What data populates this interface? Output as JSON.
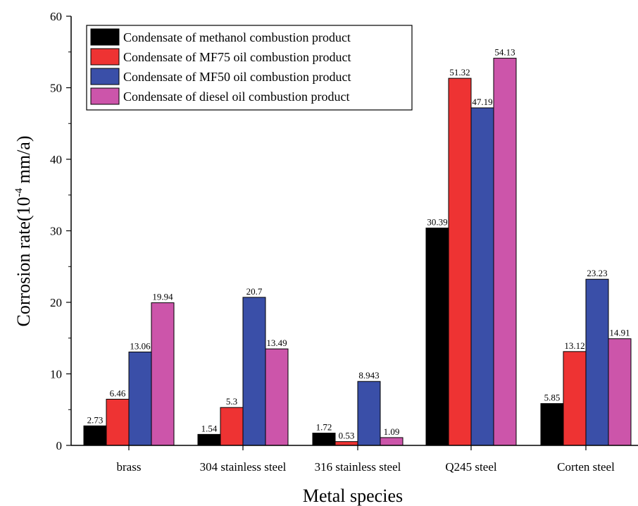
{
  "chart_data": {
    "type": "bar",
    "title": "",
    "xlabel": "Metal species",
    "ylabel_main": "Corrosion rate(10",
    "ylabel_exp": "-4",
    "ylabel_unit": " mm/a)",
    "categories": [
      "brass",
      "304 stainless steel",
      "316 stainless steel",
      "Q245 steel",
      "Corten steel"
    ],
    "ylim": [
      0,
      60
    ],
    "yticks": [
      0,
      10,
      20,
      30,
      40,
      50,
      60
    ],
    "grid": false,
    "legend_position": "top-left",
    "series": [
      {
        "name": "Condensate of methanol combustion product",
        "color": "#000000",
        "values": [
          2.73,
          1.54,
          1.72,
          30.39,
          5.85
        ],
        "labels": [
          "2.73",
          "1.54",
          "1.72",
          "30.39",
          "5.85"
        ]
      },
      {
        "name": "Condensate of MF75 oil combustion product",
        "color": "#ee3333",
        "values": [
          6.46,
          5.3,
          0.53,
          51.32,
          13.12
        ],
        "labels": [
          "6.46",
          "5.3",
          "0.53",
          "51.32",
          "13.12"
        ]
      },
      {
        "name": "Condensate of MF50 oil combustion product",
        "color": "#3a4fa8",
        "values": [
          13.06,
          20.7,
          8.943,
          47.19,
          23.23
        ],
        "labels": [
          "13.06",
          "20.7",
          "8.943",
          "47.19",
          "23.23"
        ]
      },
      {
        "name": "Condensate of diesel oil combustion product",
        "color": "#cc55aa",
        "values": [
          19.94,
          13.49,
          1.09,
          54.13,
          14.91
        ],
        "labels": [
          "19.94",
          "13.49",
          "1.09",
          "54.13",
          "14.91"
        ]
      }
    ]
  }
}
